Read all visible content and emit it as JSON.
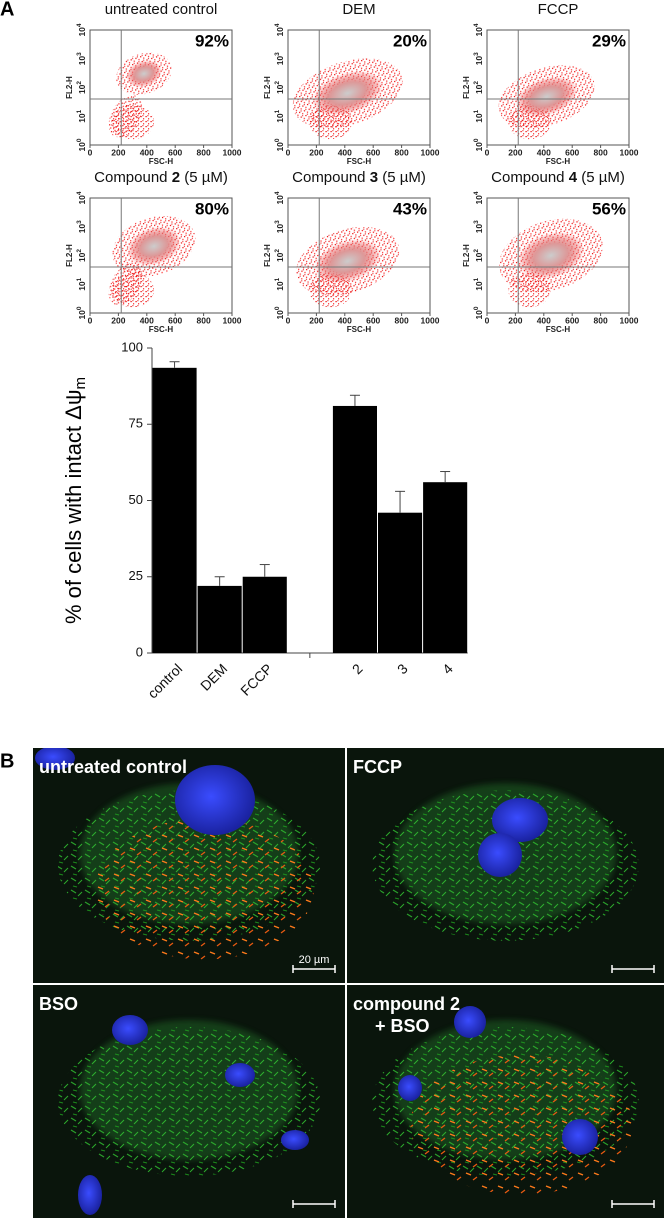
{
  "panel_a": {
    "label": "A",
    "flow_plots": [
      {
        "title": [
          "untreated control"
        ],
        "percent": "92%"
      },
      {
        "title": [
          "DEM"
        ],
        "percent": "20%"
      },
      {
        "title": [
          "FCCP"
        ],
        "percent": "29%"
      },
      {
        "title": [
          "Compound ",
          "2",
          " (5 µM)"
        ],
        "percent": "80%"
      },
      {
        "title": [
          "Compound ",
          "3",
          " (5 µM)"
        ],
        "percent": "43%"
      },
      {
        "title": [
          "Compound ",
          "4",
          " (5 µM)"
        ],
        "percent": "56%"
      }
    ],
    "flow_axes": {
      "xlabel": "FSC-H",
      "ylabel": "FL2-H",
      "xticks": [
        0,
        200,
        400,
        600,
        800,
        1000
      ],
      "yticks": [
        {
          "base": "10",
          "exp": "0"
        },
        {
          "base": "10",
          "exp": "1"
        },
        {
          "base": "10",
          "exp": "2"
        },
        {
          "base": "10",
          "exp": "3"
        },
        {
          "base": "10",
          "exp": "4"
        }
      ]
    }
  },
  "chart_data": {
    "type": "bar",
    "ylabel": "% of cells with intact Δψ",
    "ylabel_sub": "m",
    "categories": [
      "control",
      "DEM",
      "FCCP",
      null,
      "2",
      "3",
      "4"
    ],
    "values": [
      93.5,
      22,
      25,
      null,
      81,
      46,
      56
    ],
    "errors": [
      2,
      3,
      4,
      null,
      3.5,
      7,
      3.5
    ],
    "color": "#000000",
    "ylim": [
      0,
      100
    ],
    "yticks": [
      0,
      25,
      50,
      75,
      100
    ]
  },
  "panel_b": {
    "label": "B",
    "images": [
      {
        "label": [
          "untreated control"
        ]
      },
      {
        "label": [
          "FCCP"
        ]
      },
      {
        "label": [
          "BSO"
        ]
      },
      {
        "label": [
          "compound 2",
          "+ BSO"
        ]
      }
    ],
    "scale_bar": "20 µm"
  }
}
